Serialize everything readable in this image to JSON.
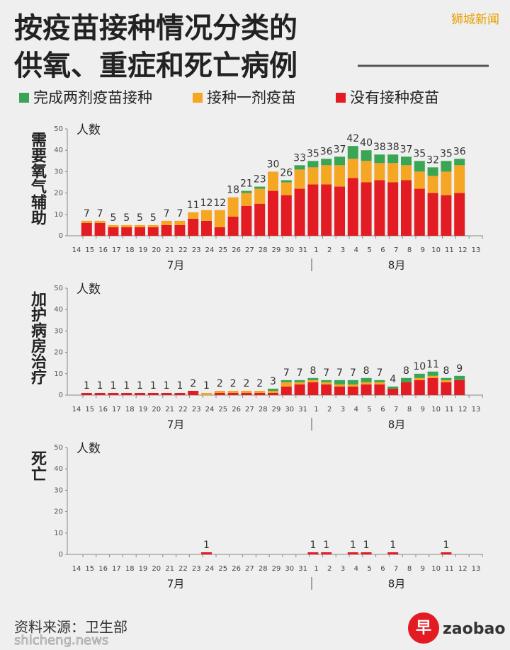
{
  "header": {
    "title_lines": [
      "按疫苗接种情况分类的",
      "供氧、重症和死亡病例"
    ],
    "watermark": "狮城新闻"
  },
  "legend": [
    {
      "name": "完成两剂疫苗接种",
      "color": "#3aa655"
    },
    {
      "name": "接种一剂疫苗",
      "color": "#f5a623"
    },
    {
      "name": "没有接种疫苗",
      "color": "#e31b23"
    }
  ],
  "chart_data": [
    {
      "type": "bar",
      "stacked": true,
      "title": "需要氧气辅助",
      "y_label": "人数",
      "month_labels": [
        "7月",
        "8月"
      ],
      "categories": [
        "14",
        "15",
        "16",
        "17",
        "18",
        "19",
        "20",
        "21",
        "22",
        "23",
        "24",
        "25",
        "26",
        "27",
        "28",
        "29",
        "30",
        "31",
        "1",
        "2",
        "3",
        "4",
        "5",
        "6",
        "7",
        "8",
        "9",
        "10",
        "11",
        "12",
        "13"
      ],
      "ylim": [
        0,
        50
      ],
      "yticks": [
        0,
        10,
        20,
        30,
        40,
        50
      ],
      "totals": [
        null,
        7,
        7,
        5,
        5,
        5,
        5,
        7,
        7,
        11,
        12,
        12,
        18,
        21,
        23,
        30,
        26,
        33,
        35,
        36,
        37,
        42,
        40,
        38,
        38,
        37,
        35,
        32,
        35,
        36,
        null
      ],
      "series": [
        {
          "color": "#e31b23",
          "values": [
            null,
            6,
            6,
            4,
            4,
            4,
            4,
            5,
            5,
            8,
            7,
            4,
            9,
            14,
            15,
            21,
            19,
            22,
            24,
            24,
            23,
            27,
            25,
            26,
            25,
            26,
            22,
            20,
            19,
            20,
            null
          ]
        },
        {
          "color": "#f5a623",
          "values": [
            null,
            1,
            1,
            1,
            1,
            1,
            1,
            2,
            2,
            3,
            5,
            8,
            9,
            6,
            7,
            9,
            6,
            9,
            8,
            9,
            10,
            9,
            10,
            8,
            9,
            7,
            8,
            8,
            11,
            13,
            null
          ]
        },
        {
          "color": "#3aa655",
          "values": [
            null,
            0,
            0,
            0,
            0,
            0,
            0,
            0,
            0,
            0,
            0,
            0,
            0,
            1,
            1,
            0,
            1,
            2,
            3,
            3,
            4,
            6,
            5,
            4,
            4,
            4,
            5,
            4,
            5,
            3,
            null
          ]
        }
      ]
    },
    {
      "type": "bar",
      "stacked": true,
      "title": "加护病房治疗",
      "y_label": "人数",
      "month_labels": [
        "7月",
        "8月"
      ],
      "categories": [
        "14",
        "15",
        "16",
        "17",
        "18",
        "19",
        "20",
        "21",
        "22",
        "23",
        "24",
        "25",
        "26",
        "27",
        "28",
        "29",
        "30",
        "31",
        "1",
        "2",
        "3",
        "4",
        "5",
        "6",
        "7",
        "8",
        "9",
        "10",
        "11",
        "12",
        "13"
      ],
      "ylim": [
        0,
        50
      ],
      "yticks": [
        0,
        10,
        20,
        30,
        40,
        50
      ],
      "totals": [
        null,
        1,
        1,
        1,
        1,
        1,
        1,
        1,
        1,
        2,
        1,
        2,
        2,
        2,
        2,
        3,
        7,
        7,
        8,
        7,
        7,
        7,
        8,
        7,
        4,
        8,
        10,
        11,
        8,
        9,
        null
      ],
      "series": [
        {
          "color": "#e31b23",
          "values": [
            null,
            1,
            1,
            1,
            1,
            1,
            1,
            1,
            1,
            2,
            0,
            1,
            1,
            1,
            1,
            1,
            4,
            5,
            6,
            5,
            4,
            4,
            5,
            5,
            3,
            6,
            7,
            8,
            6,
            7,
            null
          ]
        },
        {
          "color": "#f5a623",
          "values": [
            null,
            0,
            0,
            0,
            0,
            0,
            0,
            0,
            0,
            0,
            1,
            1,
            1,
            1,
            1,
            1,
            2,
            1,
            1,
            1,
            1,
            1,
            1,
            1,
            0,
            0,
            1,
            1,
            1,
            0,
            null
          ]
        },
        {
          "color": "#3aa655",
          "values": [
            null,
            0,
            0,
            0,
            0,
            0,
            0,
            0,
            0,
            0,
            0,
            0,
            0,
            0,
            0,
            1,
            1,
            1,
            1,
            1,
            2,
            2,
            2,
            1,
            1,
            2,
            2,
            2,
            1,
            2,
            null
          ]
        }
      ]
    },
    {
      "type": "bar",
      "stacked": true,
      "title": "死亡",
      "y_label": "人数",
      "month_labels": [
        "7月",
        "8月"
      ],
      "categories": [
        "14",
        "15",
        "16",
        "17",
        "18",
        "19",
        "20",
        "21",
        "22",
        "23",
        "24",
        "25",
        "26",
        "27",
        "28",
        "29",
        "30",
        "31",
        "1",
        "2",
        "3",
        "4",
        "5",
        "6",
        "7",
        "8",
        "9",
        "10",
        "11",
        "12",
        "13"
      ],
      "ylim": [
        0,
        50
      ],
      "yticks": [
        0,
        10,
        20,
        30,
        40,
        50
      ],
      "totals": [
        null,
        null,
        null,
        null,
        null,
        null,
        null,
        null,
        null,
        null,
        1,
        null,
        null,
        null,
        null,
        null,
        null,
        null,
        1,
        1,
        null,
        1,
        1,
        null,
        1,
        null,
        null,
        null,
        1,
        null,
        null
      ],
      "series": [
        {
          "color": "#e31b23",
          "values": [
            null,
            null,
            null,
            null,
            null,
            null,
            null,
            null,
            null,
            null,
            1,
            null,
            null,
            null,
            null,
            null,
            null,
            null,
            1,
            1,
            null,
            1,
            1,
            null,
            1,
            null,
            null,
            null,
            1,
            null,
            null
          ]
        }
      ]
    }
  ],
  "footer": {
    "source": "资料来源：卫生部",
    "brand": "zaobao",
    "brand_icon": "早",
    "site": "shicheng.news"
  }
}
